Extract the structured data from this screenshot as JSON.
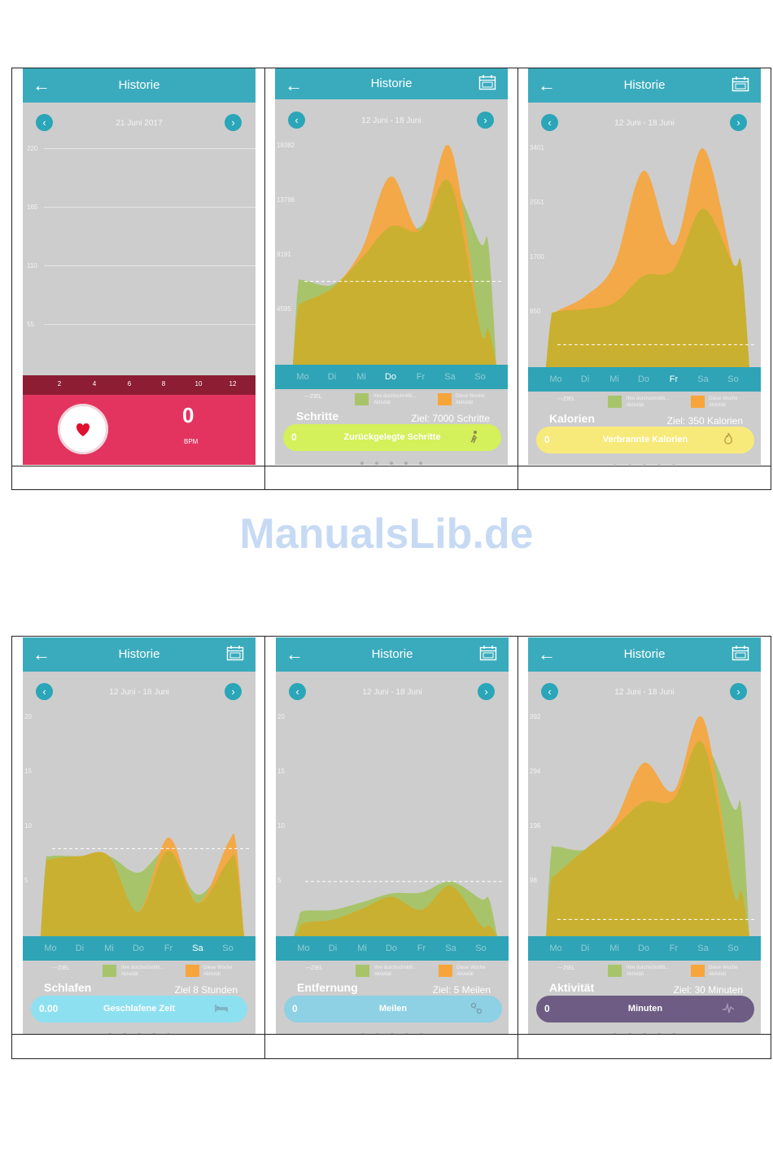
{
  "watermark": "ManualsLib.de",
  "colors": {
    "header": "#3aabbd",
    "background": "#cdcdcd",
    "green_series": "#a8c46a",
    "orange_series": "#f7a53a",
    "overlap": "#c9b030"
  },
  "legend": {
    "ziel": "---ZIEL",
    "avg_line1": "Ihre durchschnittli...",
    "avg_line2": "Aktivität",
    "week_line1": "Diese Woche",
    "week_line2": "Aktivität"
  },
  "days": [
    "Mo",
    "Di",
    "Mi",
    "Do",
    "Fr",
    "Sa",
    "So"
  ],
  "heart_rate": {
    "title": "Historie",
    "date": "21 Juni 2017",
    "y_ticks": [
      "220",
      "165",
      "110",
      "55"
    ],
    "x_ticks": [
      "2",
      "4",
      "6",
      "8",
      "10",
      "12"
    ],
    "value": "0",
    "unit": "BPM",
    "back_icon": "arrow-left-icon",
    "heart_icon": "heart-icon"
  },
  "panels": [
    {
      "id": "schritte",
      "title": "Historie",
      "date": "12 Juni - 18 Juni",
      "y_ticks": [
        "18382",
        "13786",
        "9191",
        "4595"
      ],
      "active_day": 3,
      "metric": "Schritte",
      "goal": "Ziel: 7000 Schritte",
      "pill_value": "0",
      "pill_label": "Zurückgelegte Schritte",
      "pill_color": "#d4f05a",
      "pill_icon": "walker-icon",
      "chart_data": {
        "type": "area",
        "categories": [
          "Mo",
          "Di",
          "Mi",
          "Do",
          "Fr",
          "Sa",
          "So"
        ],
        "ylim": [
          0,
          18382
        ],
        "goal": 7000,
        "series": [
          {
            "name": "Ihre durchschnittli... Aktivität",
            "values": [
              7100,
              6700,
              8900,
              11600,
              11600,
              15300,
              10200
            ]
          },
          {
            "name": "Diese Woche Aktivität",
            "values": [
              5200,
              6400,
              9600,
              15800,
              11300,
              18300,
              3000
            ]
          }
        ]
      }
    },
    {
      "id": "kalorien",
      "title": "Historie",
      "date": "12 Juni - 18 Juni",
      "y_ticks": [
        "3401",
        "2551",
        "1700",
        "850"
      ],
      "active_day": 4,
      "metric": "Kalorien",
      "goal": "Ziel: 350 Kalorien",
      "pill_value": "0",
      "pill_label": "Verbrannte  Kalorien",
      "pill_color": "#f7ea7a",
      "pill_icon": "flame-icon",
      "chart_data": {
        "type": "area",
        "categories": [
          "Mo",
          "Di",
          "Mi",
          "Do",
          "Fr",
          "Sa",
          "So"
        ],
        "ylim": [
          0,
          3401
        ],
        "goal": 350,
        "series": [
          {
            "name": "Ihre durchschnittli... Aktivität",
            "values": [
              860,
              900,
              1000,
              1420,
              1520,
              2460,
              1600
            ]
          },
          {
            "name": "Diese Woche Aktivität",
            "values": [
              860,
              1100,
              1600,
              3050,
              1900,
              3400,
              1600
            ]
          }
        ]
      }
    },
    {
      "id": "schlafen",
      "title": "Historie",
      "date": "12 Juni - 18 Juni",
      "y_ticks": [
        "20",
        "15",
        "10",
        "5"
      ],
      "active_day": 5,
      "metric": "Schlafen",
      "goal": "Ziel 8 Stunden",
      "pill_value": "0.00",
      "pill_label": "Geschlafene  Zeit",
      "pill_color": "#8de0f0",
      "pill_icon": "bed-icon",
      "chart_data": {
        "type": "area",
        "categories": [
          "Mo",
          "Di",
          "Mi",
          "Do",
          "Fr",
          "Sa",
          "So"
        ],
        "ylim": [
          0,
          20
        ],
        "goal": 8,
        "series": [
          {
            "name": "Ihre durchschnittli... Aktivität",
            "values": [
              7.3,
              7.3,
              7.3,
              5.8,
              7.8,
              3.8,
              6.8
            ]
          },
          {
            "name": "Diese Woche Aktivität",
            "values": [
              7.0,
              7.3,
              7.3,
              2.2,
              9.0,
              3.0,
              8.5
            ]
          }
        ]
      }
    },
    {
      "id": "entfernung",
      "title": "Historie",
      "date": "12 Juni - 18 Juni",
      "y_ticks": [
        "20",
        "15",
        "10",
        "5"
      ],
      "active_day": -1,
      "metric": "Entfernung",
      "goal": "Ziel: 5 Meilen",
      "pill_value": "0",
      "pill_label": "Meilen",
      "pill_color": "#8ed0e4",
      "pill_icon": "distance-icon",
      "chart_data": {
        "type": "area",
        "categories": [
          "Mo",
          "Di",
          "Mi",
          "Do",
          "Fr",
          "Sa",
          "So"
        ],
        "ylim": [
          0,
          20
        ],
        "goal": 5,
        "series": [
          {
            "name": "Ihre durchschnittli... Aktivität",
            "values": [
              2.3,
              2.4,
              3.1,
              3.9,
              4.0,
              5.0,
              3.4
            ]
          },
          {
            "name": "Diese Woche Aktivität",
            "values": [
              1.2,
              1.5,
              2.5,
              3.6,
              2.4,
              4.6,
              1.0
            ]
          }
        ]
      }
    },
    {
      "id": "aktivitaet",
      "title": "Historie",
      "date": "12 Juni - 18 Juni",
      "y_ticks": [
        "392",
        "294",
        "196",
        "98"
      ],
      "active_day": -1,
      "metric": "Aktivität",
      "goal": "Ziel: 30 Minuten",
      "pill_value": "0",
      "pill_label": "Minuten",
      "pill_color": "#6e5c84",
      "pill_icon": "pulse-icon",
      "chart_data": {
        "type": "area",
        "categories": [
          "Mo",
          "Di",
          "Mi",
          "Do",
          "Fr",
          "Sa",
          "So"
        ],
        "ylim": [
          0,
          392
        ],
        "goal": 30,
        "series": [
          {
            "name": "Ihre durchschnittli... Aktivität",
            "values": [
              160,
              155,
              195,
              240,
              245,
              345,
              230
            ]
          },
          {
            "name": "Diese Woche Aktivität",
            "values": [
              110,
              155,
              205,
              310,
              260,
              390,
              80
            ]
          }
        ]
      }
    }
  ]
}
